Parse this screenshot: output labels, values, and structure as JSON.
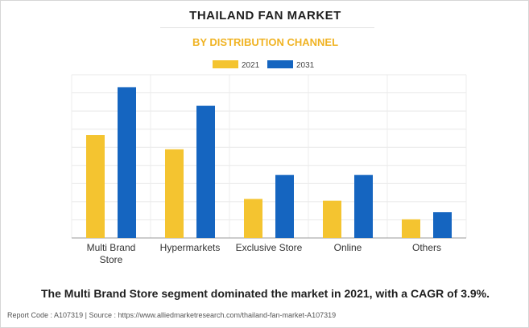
{
  "title": "THAILAND FAN MARKET",
  "subtitle": "BY DISTRIBUTION CHANNEL",
  "caption": "The Multi Brand Store segment dominated the market in 2021, with a CAGR of 3.9%.",
  "footer": {
    "report_code": "Report Code : A107319",
    "separator": "|",
    "source": "Source : https://www.alliedmarketresearch.com/thailand-fan-market-A107319"
  },
  "chart_data": {
    "type": "bar",
    "categories": [
      "Multi Brand Store",
      "Hypermarkets",
      "Exclusive Store",
      "Online",
      "Others"
    ],
    "category_lines": [
      [
        "Multi Brand",
        "Store"
      ],
      [
        "Hypermarkets"
      ],
      [
        "Exclusive Store"
      ],
      [
        "Online"
      ],
      [
        "Others"
      ]
    ],
    "series": [
      {
        "name": "2021",
        "color": "#f4c430",
        "values": [
          58,
          50,
          22,
          21,
          10.5
        ]
      },
      {
        "name": "2031",
        "color": "#1565c0",
        "values": [
          85,
          74.5,
          35.5,
          35.5,
          14.5
        ]
      }
    ],
    "ylim": [
      0,
      92
    ],
    "grid_lines": 9,
    "grid": true,
    "legend_position": "top-center",
    "y_tick_labels": false
  }
}
